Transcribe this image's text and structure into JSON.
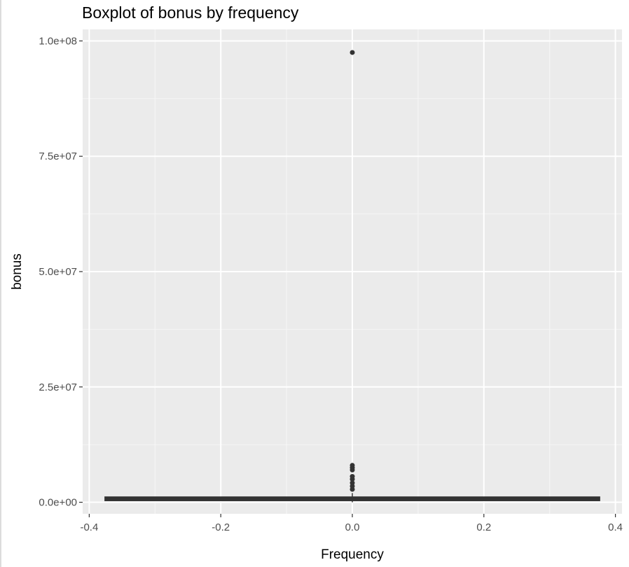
{
  "chart_data": {
    "type": "boxplot",
    "title": "Boxplot of bonus by frequency",
    "xlabel": "Frequency",
    "ylabel": "bonus",
    "xlim": [
      -0.41,
      0.41
    ],
    "ylim": [
      -2500000,
      102500000
    ],
    "x_ticks": [
      -0.4,
      -0.2,
      0.0,
      0.2,
      0.4
    ],
    "x_tick_labels": [
      "-0.4",
      "-0.2",
      "0.0",
      "0.2",
      "0.4"
    ],
    "y_ticks": [
      0,
      25000000,
      50000000,
      75000000,
      100000000
    ],
    "y_tick_labels": [
      "0.0e+00",
      "2.5e+07",
      "5.0e+07",
      "7.5e+07",
      "1.0e+08"
    ],
    "grid": true,
    "legend": "none",
    "box": {
      "x_center": 0,
      "x_min": -0.375,
      "x_max": 0.375,
      "q1": 500000,
      "median": 750000,
      "q3": 1000000,
      "whisker_low": 0,
      "whisker_high": 2000000
    },
    "outliers": [
      2800000,
      3500000,
      4200000,
      5000000,
      5600000,
      7000000,
      7500000,
      8000000,
      97500000
    ],
    "colors": {
      "panel_background": "#ebebeb",
      "grid_major": "#ffffff",
      "grid_minor": "#f5f5f5",
      "box": "#333333",
      "outlier": "#333333",
      "tick_text": "#4d4d4d"
    }
  }
}
